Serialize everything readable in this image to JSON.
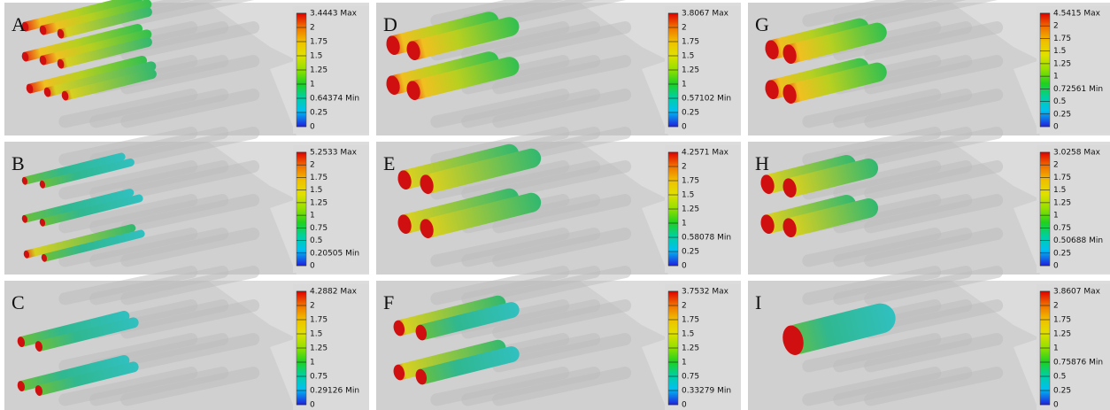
{
  "panels": [
    {
      "label": "A",
      "legend": [
        "3.4443 Max",
        "2",
        "1.75",
        "1.5",
        "1.25",
        "1",
        "0.64374 Min",
        "0.25",
        "0"
      ]
    },
    {
      "label": "D",
      "legend": [
        "3.8067 Max",
        "2",
        "1.75",
        "1.5",
        "1.25",
        "1",
        "0.57102 Min",
        "0.25",
        "0"
      ]
    },
    {
      "label": "G",
      "legend": [
        "4.5415 Max",
        "2",
        "1.75",
        "1.5",
        "1.25",
        "1",
        "0.72561 Min",
        "0.5",
        "0.25",
        "0"
      ]
    },
    {
      "label": "B",
      "legend": [
        "5.2533 Max",
        "2",
        "1.75",
        "1.5",
        "1.25",
        "1",
        "0.75",
        "0.5",
        "0.20505 Min",
        "0"
      ]
    },
    {
      "label": "E",
      "legend": [
        "4.2571 Max",
        "2",
        "1.75",
        "1.5",
        "1.25",
        "1",
        "0.58078 Min",
        "0.25",
        "0"
      ]
    },
    {
      "label": "H",
      "legend": [
        "3.0258 Max",
        "2",
        "1.75",
        "1.5",
        "1.25",
        "1",
        "0.75",
        "0.50688 Min",
        "0.25",
        "0"
      ]
    },
    {
      "label": "C",
      "legend": [
        "4.2882 Max",
        "2",
        "1.75",
        "1.5",
        "1.25",
        "1",
        "0.75",
        "0.29126 Min",
        "0"
      ]
    },
    {
      "label": "F",
      "legend": [
        "3.7532 Max",
        "2",
        "1.75",
        "1.5",
        "1.25",
        "1",
        "0.75",
        "0.33279 Min",
        "0"
      ]
    },
    {
      "label": "I",
      "legend": [
        "3.8607 Max",
        "2",
        "1.75",
        "1.25",
        "1",
        "0.75876 Min",
        "0.5",
        "0.25",
        "0"
      ]
    }
  ]
}
